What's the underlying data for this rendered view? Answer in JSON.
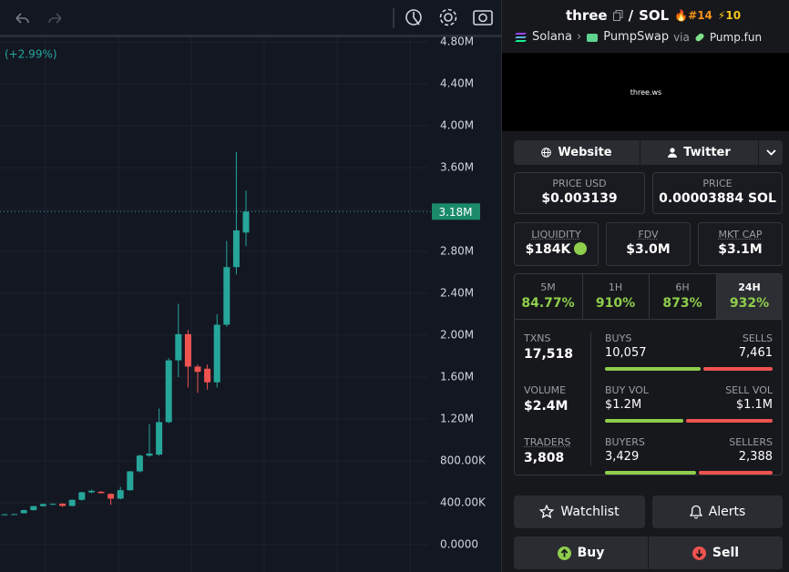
{
  "chart_data": {
    "type": "candlestick",
    "change": "(+2.99%)",
    "ylim": [
      0,
      4800000
    ],
    "yticks": [
      {
        "value": 0,
        "label": "0.0000"
      },
      {
        "value": 400000,
        "label": "400.00K"
      },
      {
        "value": 800000,
        "label": "800.00K"
      },
      {
        "value": 1200000,
        "label": "1.20M"
      },
      {
        "value": 1600000,
        "label": "1.60M"
      },
      {
        "value": 2000000,
        "label": "2.00M"
      },
      {
        "value": 2400000,
        "label": "2.40M"
      },
      {
        "value": 2800000,
        "label": "2.80M"
      },
      {
        "value": 3200000,
        "label": "3.20M"
      },
      {
        "value": 3600000,
        "label": "3.60M"
      },
      {
        "value": 4000000,
        "label": "4.00M"
      },
      {
        "value": 4400000,
        "label": "4.40M"
      },
      {
        "value": 4800000,
        "label": "4.80M"
      }
    ],
    "last_price": {
      "value": 3180000,
      "label": "3.18M"
    },
    "up_color": "#26a69a",
    "down_color": "#ef5350",
    "open": [
      290000,
      290000,
      300000,
      330000,
      368000,
      385000,
      392000,
      370000,
      428000,
      500000,
      505000,
      485000,
      440000,
      520000,
      700000,
      850000,
      860000,
      1170000,
      1760000,
      2010000,
      1700000,
      1680000,
      1550000,
      2100000,
      2650000,
      2980000
    ],
    "high": [
      295000,
      295000,
      335000,
      370000,
      392000,
      395000,
      396000,
      432000,
      505000,
      525000,
      512000,
      490000,
      552000,
      705000,
      860000,
      1150000,
      1300000,
      1780000,
      2300000,
      2050000,
      1720000,
      1720000,
      2200000,
      2900000,
      3750000,
      3380000
    ],
    "low": [
      285000,
      285000,
      298000,
      325000,
      362000,
      378000,
      360000,
      365000,
      420000,
      490000,
      488000,
      380000,
      432000,
      515000,
      690000,
      840000,
      850000,
      1160000,
      1600000,
      1500000,
      1450000,
      1480000,
      1500000,
      2080000,
      2580000,
      2850000
    ],
    "close": [
      290000,
      292000,
      330000,
      368000,
      388000,
      390000,
      370000,
      428000,
      500000,
      515000,
      492000,
      440000,
      520000,
      700000,
      850000,
      870000,
      1170000,
      1760000,
      2010000,
      1700000,
      1650000,
      1550000,
      2100000,
      2650000,
      3000000,
      3180000
    ]
  },
  "header": {
    "token": "three",
    "quote": "SOL",
    "rank": "#14",
    "boosts": "10",
    "chain": "Solana",
    "dex": "PumpSwap",
    "via": "via",
    "launchpad": "Pump.fun"
  },
  "banner": {
    "text": "three.ws"
  },
  "links": {
    "website": "Website",
    "twitter": "Twitter"
  },
  "prices": [
    {
      "label": "PRICE USD",
      "value": "$0.003139"
    },
    {
      "label": "PRICE",
      "value": "0.00003884 SOL"
    }
  ],
  "metrics": [
    {
      "label": "LIQUIDITY",
      "value": "$184K"
    },
    {
      "label": "FDV",
      "value": "$3.0M"
    },
    {
      "label": "MKT CAP",
      "value": "$3.1M"
    }
  ],
  "periods": [
    {
      "label": "5M",
      "change": "84.77%"
    },
    {
      "label": "1H",
      "change": "910%"
    },
    {
      "label": "6H",
      "change": "873%"
    },
    {
      "label": "24H",
      "change": "932%"
    }
  ],
  "stats": {
    "txns": {
      "label": "TXNS",
      "value": "17,518"
    },
    "buys": {
      "label": "BUYS",
      "value": "10,057"
    },
    "sells": {
      "label": "SELLS",
      "value": "7,461"
    },
    "volume": {
      "label": "VOLUME",
      "value": "$2.4M"
    },
    "buy_vol": {
      "label": "BUY VOL",
      "value": "$1.2M"
    },
    "sell_vol": {
      "label": "SELL VOL",
      "value": "$1.1M"
    },
    "traders": {
      "label": "TRADERS",
      "value": "3,808"
    },
    "buyers": {
      "label": "BUYERS",
      "value": "3,429"
    },
    "sellers": {
      "label": "SELLERS",
      "value": "2,388"
    }
  },
  "actions": {
    "watchlist": "Watchlist",
    "alerts": "Alerts",
    "buy": "Buy",
    "sell": "Sell"
  }
}
